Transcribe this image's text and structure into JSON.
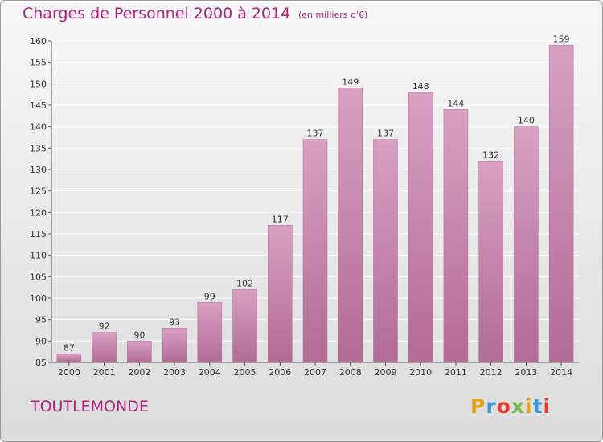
{
  "title": "Charges de Personnel 2000 à 2014",
  "unit": "(en milliers d'€)",
  "commune": "TOUTLEMONDE",
  "logo": {
    "letters": [
      "P",
      "r",
      "o",
      "x",
      "i",
      "t",
      "i"
    ],
    "colors": [
      "#e8a317",
      "#3a9ad9",
      "#e63c2f",
      "#7ab648",
      "#e8a317",
      "#3a9ad9",
      "#e63c2f"
    ]
  },
  "colors": {
    "bar": "#d9a0c3",
    "bar_dark": "#b16b95",
    "text": "#b0207d",
    "grid": "#ffffff"
  },
  "chart_data": {
    "type": "bar",
    "categories": [
      "2000",
      "2001",
      "2002",
      "2003",
      "2004",
      "2005",
      "2006",
      "2007",
      "2008",
      "2009",
      "2010",
      "2011",
      "2012",
      "2013",
      "2014"
    ],
    "values": [
      87,
      92,
      90,
      93,
      99,
      102,
      117,
      137,
      149,
      137,
      148,
      144,
      132,
      140,
      159
    ],
    "ylim": [
      85,
      160
    ],
    "yticks": [
      85,
      90,
      95,
      100,
      105,
      110,
      115,
      120,
      125,
      130,
      135,
      140,
      145,
      150,
      155,
      160
    ],
    "grid": true,
    "legend": "none"
  }
}
